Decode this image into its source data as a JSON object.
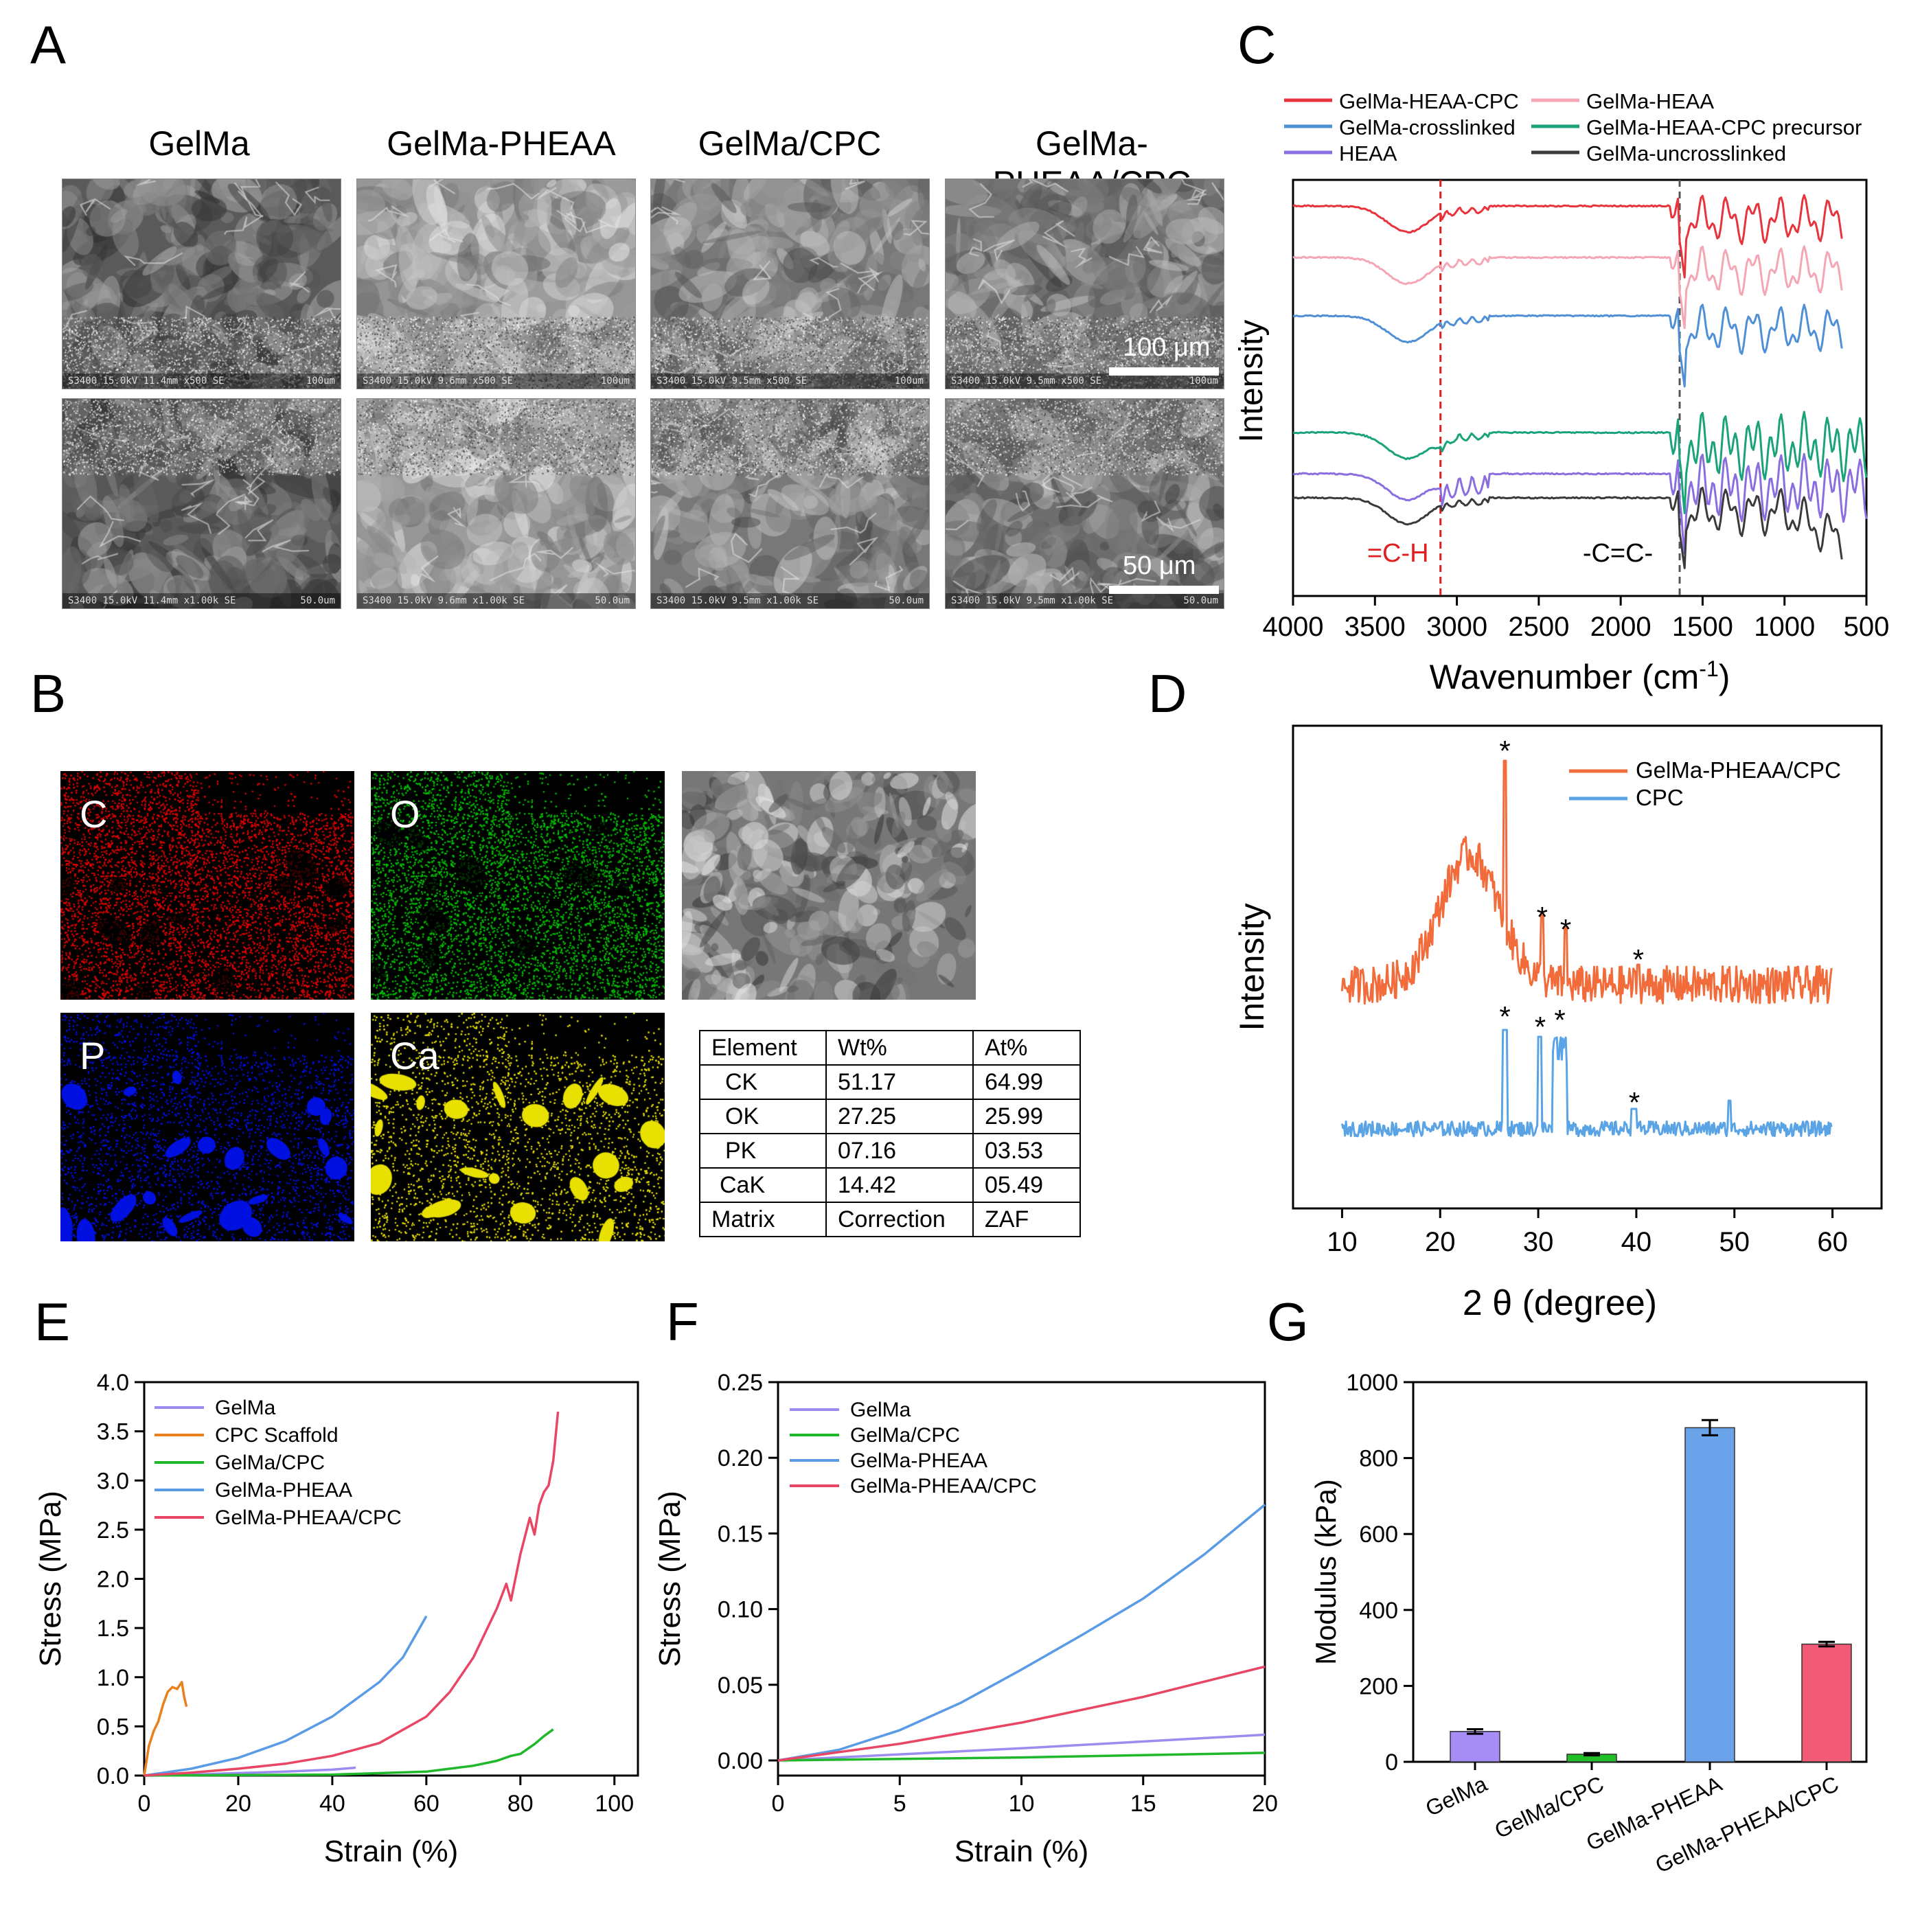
{
  "panels": {
    "A": "A",
    "B": "B",
    "C": "C",
    "D": "D",
    "E": "E",
    "F": "F",
    "G": "G"
  },
  "panelA": {
    "columns": [
      "GelMa",
      "GelMa-PHEAA",
      "GelMa/CPC",
      "GelMa-PHEAA/CPC"
    ],
    "scale_top": "100 μm",
    "scale_bottom": "50 μm",
    "sem_footers_top": [
      "S3400 15.0kV 11.4mm x500 SE",
      "S3400 15.0kV 9.6mm x500 SE",
      "S3400 15.0kV 9.5mm x500 SE",
      "S3400 15.0kV 9.5mm x500 SE"
    ],
    "sem_footers_bottom": [
      "S3400 15.0kV 11.4mm x1.00k SE",
      "S3400 15.0kV 9.6mm x1.00k SE",
      "S3400 15.0kV 9.5mm x1.00k SE",
      "S3400 15.0kV 9.5mm x1.00k SE"
    ],
    "sem_scale_small_top": "100um",
    "sem_scale_small_bottom": "50.0um"
  },
  "panelB": {
    "maps": [
      {
        "label": "C",
        "color": "#e00000"
      },
      {
        "label": "O",
        "color": "#00c000"
      },
      {
        "label": "P",
        "color": "#0010e0"
      },
      {
        "label": "Ca",
        "color": "#e8e000"
      }
    ],
    "table_header": [
      "Element",
      "Wt%",
      "At%"
    ],
    "table_rows": [
      [
        "CK",
        "51.17",
        "64.99"
      ],
      [
        "OK",
        "27.25",
        "25.99"
      ],
      [
        "PK",
        "07.16",
        "03.53"
      ],
      [
        "CaK",
        "14.42",
        "05.49"
      ],
      [
        "Matrix",
        "Correction",
        "ZAF"
      ]
    ]
  },
  "chart_data": [
    {
      "panel": "C",
      "type": "line",
      "title": "",
      "xlabel": "Wavenumber (cm-1)",
      "ylabel": "Intensity",
      "x_ticks": [
        "4000",
        "3500",
        "3000",
        "2500",
        "2000",
        "1500",
        "1000",
        "500"
      ],
      "xlim": [
        4000,
        500
      ],
      "annotations": [
        "=C-H",
        "-C=C-"
      ],
      "annotation_x": [
        3100,
        1640
      ],
      "series": [
        {
          "name": "GelMa-HEAA-CPC",
          "color": "#e8323c"
        },
        {
          "name": "GelMa-HEAA",
          "color": "#f4a6b4"
        },
        {
          "name": "GelMa-crosslinked",
          "color": "#4f8fd6"
        },
        {
          "name": "GelMa-HEAA-CPC precursor",
          "color": "#1aa37a"
        },
        {
          "name": "HEAA",
          "color": "#8a6ee0"
        },
        {
          "name": "GelMa-uncrosslinked",
          "color": "#3a3a3a"
        }
      ]
    },
    {
      "panel": "D",
      "type": "line",
      "xlabel": "2 θ (degree)",
      "ylabel": "Intensity",
      "x_ticks": [
        "10",
        "20",
        "30",
        "40",
        "50",
        "60"
      ],
      "xlim": [
        5,
        65
      ],
      "peak_marker": "*",
      "peaks_top": [
        26.6,
        30.4,
        32.8,
        40.2
      ],
      "peaks_bottom": [
        26.6,
        30.2,
        32.2,
        39.8
      ],
      "series": [
        {
          "name": "GelMa-PHEAA/CPC",
          "color": "#f26b3a"
        },
        {
          "name": "CPC",
          "color": "#5aa4e6"
        }
      ]
    },
    {
      "panel": "E",
      "type": "line",
      "xlabel": "Strain (%)",
      "ylabel": "Stress (MPa)",
      "x_ticks": [
        "0",
        "20",
        "40",
        "60",
        "80",
        "100"
      ],
      "y_ticks": [
        "0.0",
        "0.5",
        "1.0",
        "1.5",
        "2.0",
        "2.5",
        "3.0",
        "3.5",
        "4.0"
      ],
      "xlim": [
        0,
        105
      ],
      "ylim": [
        0,
        4.0
      ],
      "series": [
        {
          "name": "GelMa",
          "color": "#9a8cf0",
          "x": [
            0,
            10,
            20,
            30,
            40,
            45
          ],
          "y": [
            0,
            0.01,
            0.025,
            0.04,
            0.06,
            0.08
          ]
        },
        {
          "name": "CPC Scaffold",
          "color": "#e8801e",
          "x": [
            0,
            1,
            2,
            3,
            4,
            5,
            6,
            7,
            8,
            8.5,
            9
          ],
          "y": [
            0,
            0.3,
            0.45,
            0.55,
            0.72,
            0.85,
            0.9,
            0.88,
            0.95,
            0.8,
            0.7
          ]
        },
        {
          "name": "GelMa/CPC",
          "color": "#1fb82a",
          "x": [
            0,
            20,
            40,
            60,
            65,
            70,
            75,
            78,
            80,
            83,
            85,
            87
          ],
          "y": [
            0,
            0.005,
            0.01,
            0.04,
            0.07,
            0.1,
            0.15,
            0.2,
            0.22,
            0.32,
            0.4,
            0.47
          ]
        },
        {
          "name": "GelMa-PHEAA",
          "color": "#5a9be6",
          "x": [
            0,
            10,
            20,
            30,
            40,
            50,
            55,
            60
          ],
          "y": [
            0,
            0.07,
            0.18,
            0.35,
            0.6,
            0.95,
            1.2,
            1.62
          ]
        },
        {
          "name": "GelMa-PHEAA/CPC",
          "color": "#e84664",
          "x": [
            0,
            10,
            20,
            30,
            40,
            50,
            60,
            65,
            70,
            75,
            77,
            78,
            80,
            82,
            83,
            84,
            85,
            86,
            87,
            88
          ],
          "y": [
            0,
            0.03,
            0.07,
            0.12,
            0.2,
            0.33,
            0.6,
            0.85,
            1.2,
            1.7,
            1.95,
            1.78,
            2.25,
            2.62,
            2.45,
            2.75,
            2.88,
            2.95,
            3.2,
            3.7
          ]
        }
      ]
    },
    {
      "panel": "F",
      "type": "line",
      "xlabel": "Strain (%)",
      "ylabel": "Stress (MPa)",
      "x_ticks": [
        "0",
        "5",
        "10",
        "15",
        "20"
      ],
      "y_ticks": [
        "0.00",
        "0.05",
        "0.10",
        "0.15",
        "0.20",
        "0.25"
      ],
      "xlim": [
        0,
        20
      ],
      "ylim": [
        -0.01,
        0.25
      ],
      "series": [
        {
          "name": "GelMa",
          "color": "#9a8cf0",
          "x": [
            0,
            5,
            10,
            15,
            20
          ],
          "y": [
            0,
            0.004,
            0.008,
            0.0125,
            0.017
          ]
        },
        {
          "name": "GelMa/CPC",
          "color": "#1fb82a",
          "x": [
            0,
            5,
            10,
            15,
            20
          ],
          "y": [
            0,
            0.001,
            0.002,
            0.0035,
            0.005
          ]
        },
        {
          "name": "GelMa-PHEAA",
          "color": "#5a9be6",
          "x": [
            0,
            2.5,
            5,
            7.5,
            10,
            12.5,
            15,
            17.5,
            20
          ],
          "y": [
            0,
            0.007,
            0.02,
            0.038,
            0.06,
            0.083,
            0.107,
            0.136,
            0.169
          ]
        },
        {
          "name": "GelMa-PHEAA/CPC",
          "color": "#e84664",
          "x": [
            0,
            5,
            10,
            15,
            20
          ],
          "y": [
            0,
            0.011,
            0.025,
            0.042,
            0.062
          ]
        }
      ]
    },
    {
      "panel": "G",
      "type": "bar",
      "xlabel": "",
      "ylabel": "Modulus (kPa)",
      "categories": [
        "GelMa",
        "GelMa/CPC",
        "GelMa-PHEAA",
        "GelMa-PHEAA/CPC"
      ],
      "values": [
        80,
        20,
        880,
        310
      ],
      "errors": [
        6,
        3,
        20,
        6
      ],
      "colors": [
        "#a68cf5",
        "#22c026",
        "#6aa3ea",
        "#f25a76"
      ],
      "y_ticks": [
        "0",
        "200",
        "400",
        "600",
        "800",
        "1000"
      ],
      "ylim": [
        0,
        1000
      ]
    }
  ]
}
